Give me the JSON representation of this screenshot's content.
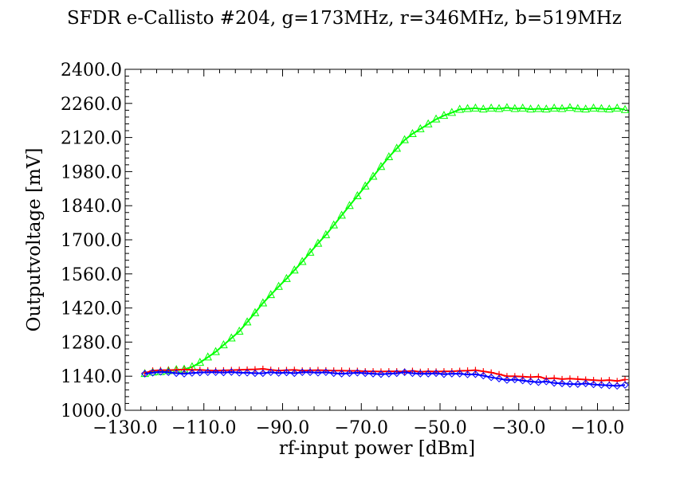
{
  "chart_data": {
    "type": "line",
    "title": "SFDR e-Callisto #204, g=173MHz, r=346MHz, b=519MHz",
    "xlabel": "rf-input power [dBm]",
    "ylabel": "Outputvoltage [mV]",
    "xlim": [
      -130,
      -2
    ],
    "ylim": [
      1000,
      2400
    ],
    "xticks": [
      -130,
      -110,
      -90,
      -70,
      -50,
      -30,
      -10
    ],
    "xtick_labels": [
      "−130.0",
      "−110.0",
      "−90.0",
      "−70.0",
      "−50.0",
      "−30.0",
      "−10.0"
    ],
    "yticks": [
      1000,
      1140,
      1280,
      1420,
      1560,
      1700,
      1840,
      1980,
      2120,
      2260,
      2400
    ],
    "ytick_labels": [
      "1000.0",
      "1140.0",
      "1280.0",
      "1420.0",
      "1560.0",
      "1700.0",
      "1840.0",
      "1980.0",
      "2120.0",
      "2260.0",
      "2400.0"
    ],
    "grid": false,
    "x_step": 2,
    "series": [
      {
        "color": "#00ff00",
        "marker": "triangle",
        "x": [
          -125,
          -123,
          -121,
          -119,
          -117,
          -115,
          -113,
          -111,
          -109,
          -107,
          -105,
          -103,
          -101,
          -99,
          -97,
          -95,
          -93,
          -91,
          -89,
          -87,
          -85,
          -83,
          -81,
          -79,
          -77,
          -75,
          -73,
          -71,
          -69,
          -67,
          -65,
          -63,
          -61,
          -59,
          -57,
          -55,
          -53,
          -51,
          -49,
          -47,
          -45,
          -43,
          -41,
          -39,
          -37,
          -35,
          -33,
          -31,
          -29,
          -27,
          -25,
          -23,
          -21,
          -19,
          -17,
          -15,
          -13,
          -11,
          -9,
          -7,
          -5,
          -3
        ],
        "y": [
          1150,
          1156,
          1158,
          1162,
          1166,
          1168,
          1178,
          1196,
          1218,
          1240,
          1268,
          1296,
          1324,
          1362,
          1400,
          1440,
          1474,
          1508,
          1540,
          1575,
          1610,
          1648,
          1685,
          1720,
          1760,
          1800,
          1840,
          1880,
          1920,
          1960,
          2000,
          2040,
          2075,
          2110,
          2135,
          2155,
          2175,
          2195,
          2210,
          2222,
          2235,
          2238,
          2240,
          2236,
          2240,
          2238,
          2242,
          2238,
          2240,
          2236,
          2238,
          2236,
          2240,
          2238,
          2242,
          2238,
          2236,
          2240,
          2238,
          2236,
          2240,
          2234
        ]
      },
      {
        "color": "#ff0000",
        "marker": "plus",
        "x": [
          -125,
          -123,
          -121,
          -119,
          -117,
          -115,
          -113,
          -111,
          -109,
          -107,
          -105,
          -103,
          -101,
          -99,
          -97,
          -95,
          -93,
          -91,
          -89,
          -87,
          -85,
          -83,
          -81,
          -79,
          -77,
          -75,
          -73,
          -71,
          -69,
          -67,
          -65,
          -63,
          -61,
          -59,
          -57,
          -55,
          -53,
          -51,
          -49,
          -47,
          -45,
          -43,
          -41,
          -39,
          -37,
          -35,
          -33,
          -31,
          -29,
          -27,
          -25,
          -23,
          -21,
          -19,
          -17,
          -15,
          -13,
          -11,
          -9,
          -7,
          -5,
          -3
        ],
        "y": [
          1153,
          1163,
          1165,
          1165,
          1166,
          1167,
          1166,
          1166,
          1164,
          1163,
          1164,
          1165,
          1166,
          1167,
          1168,
          1170,
          1166,
          1163,
          1165,
          1166,
          1163,
          1164,
          1165,
          1164,
          1163,
          1163,
          1162,
          1162,
          1160,
          1160,
          1159,
          1160,
          1160,
          1159,
          1162,
          1158,
          1160,
          1159,
          1160,
          1160,
          1162,
          1163,
          1165,
          1160,
          1155,
          1148,
          1140,
          1140,
          1138,
          1136,
          1138,
          1130,
          1132,
          1128,
          1130,
          1128,
          1126,
          1124,
          1122,
          1124,
          1120,
          1126
        ]
      },
      {
        "color": "#0000ff",
        "marker": "diamond",
        "x": [
          -125,
          -123,
          -121,
          -119,
          -117,
          -115,
          -113,
          -111,
          -109,
          -107,
          -105,
          -103,
          -101,
          -99,
          -97,
          -95,
          -93,
          -91,
          -89,
          -87,
          -85,
          -83,
          -81,
          -79,
          -77,
          -75,
          -73,
          -71,
          -69,
          -67,
          -65,
          -63,
          -61,
          -59,
          -57,
          -55,
          -53,
          -51,
          -49,
          -47,
          -45,
          -43,
          -41,
          -39,
          -37,
          -35,
          -33,
          -31,
          -29,
          -27,
          -25,
          -23,
          -21,
          -19,
          -17,
          -15,
          -13,
          -11,
          -9,
          -7,
          -5,
          -3
        ],
        "y": [
          1150,
          1154,
          1158,
          1156,
          1152,
          1150,
          1153,
          1155,
          1156,
          1156,
          1155,
          1157,
          1154,
          1154,
          1152,
          1152,
          1156,
          1153,
          1155,
          1152,
          1156,
          1156,
          1154,
          1156,
          1152,
          1150,
          1152,
          1154,
          1152,
          1150,
          1148,
          1150,
          1152,
          1156,
          1152,
          1150,
          1150,
          1152,
          1148,
          1150,
          1150,
          1147,
          1148,
          1142,
          1135,
          1130,
          1124,
          1126,
          1122,
          1118,
          1115,
          1118,
          1112,
          1110,
          1108,
          1107,
          1110,
          1106,
          1104,
          1102,
          1100,
          1104
        ]
      }
    ]
  }
}
